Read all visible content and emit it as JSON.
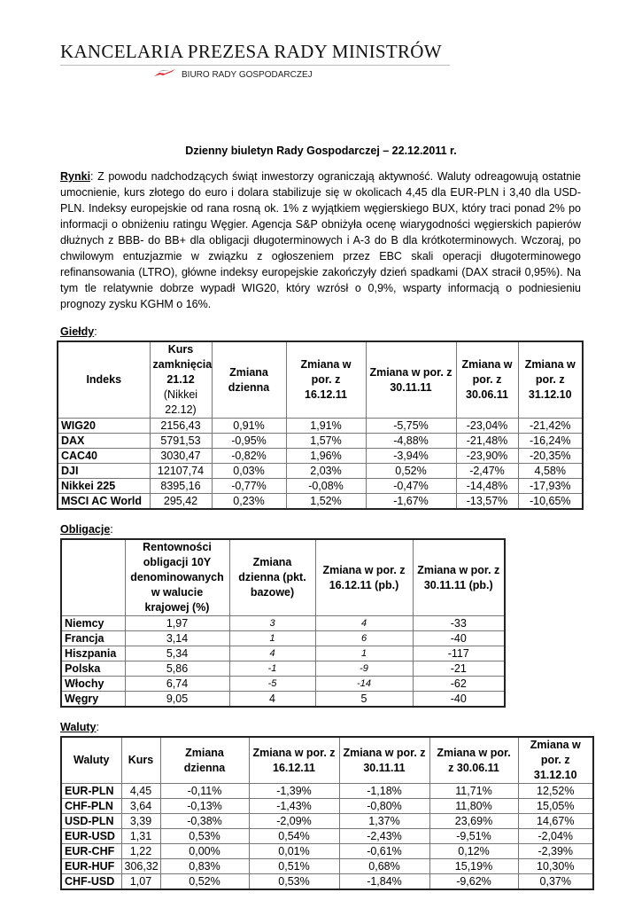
{
  "header": {
    "logo_title": "KANCELARIA PREZESA RADY MINISTRÓW",
    "logo_subtitle": "BIURO RADY GOSPODARCZEJ",
    "flag_color": "#d9282f"
  },
  "document": {
    "title": "Dzienny biuletyn Rady Gospodarczej – 22.12.2011 r.",
    "markets_label": "Rynki",
    "markets_text": ": Z powodu nadchodzących świąt inwestorzy ograniczają aktywność. Waluty odreagowują ostatnie umocnienie, kurs złotego do euro i dolara stabilizuje się w okolicach 4,45 dla EUR-PLN i 3,40 dla USD-PLN. Indeksy europejskie od rana rosną ok. 1% z wyjątkiem węgierskiego BUX, który traci ponad 2% po informacji o obniżeniu ratingu Węgier. Agencja S&P obniżyła ocenę wiarygodności węgierskich papierów dłużnych z BBB- do BB+ dla obligacji długoterminowych i A-3 do B dla krótkoterminowych. Wczoraj, po chwilowym entuzjazmie w związku z ogłoszeniem przez EBC skali operacji długoterminowego refinansowania (LTRO), główne indeksy europejskie zakończyły dzień spadkami (DAX stracił 0,95%). Na tym tle relatywnie dobrze wypadł WIG20, który wzrósł o 0,9%, wsparty informacją o podniesieniu prognozy zysku KGHM o 16%."
  },
  "stocks": {
    "label": "Giełdy",
    "headers": [
      "Indeks",
      "Kurs zamknięcia 21.12 (Nikkei 22.12)",
      "Zmiana dzienna",
      "Zmiana w por. z 16.12.11",
      "Zmiana w por. z 30.11.11",
      "Zmiana w por. z 30.06.11",
      "Zmiana w por. z 31.12.10"
    ],
    "rows": [
      [
        "WIG20",
        "2156,43",
        "0,91%",
        "1,91%",
        "-5,75%",
        "-23,04%",
        "-21,42%"
      ],
      [
        "DAX",
        "5791,53",
        "-0,95%",
        "1,57%",
        "-4,88%",
        "-21,48%",
        "-16,24%"
      ],
      [
        "CAC40",
        "3030,47",
        "-0,82%",
        "1,96%",
        "-3,94%",
        "-23,90%",
        "-20,35%"
      ],
      [
        "DJI",
        "12107,74",
        "0,03%",
        "2,03%",
        "0,52%",
        "-2,47%",
        "4,58%"
      ],
      [
        "Nikkei 225",
        "8395,16",
        "-0,77%",
        "-0,08%",
        "-0,47%",
        "-14,48%",
        "-17,93%"
      ],
      [
        "MSCI AC World",
        "295,42",
        "0,23%",
        "1,52%",
        "-1,67%",
        "-13,57%",
        "-10,65%"
      ]
    ]
  },
  "bonds": {
    "label": "Obligacje",
    "headers": [
      "",
      "Rentowności obligacji 10Y denominowanych w walucie krajowej (%)",
      "Zmiana dzienna (pkt. bazowe)",
      "Zmiana w por. z 16.12.11 (pb.)",
      "Zmiana w por. z 30.11.11 (pb.)"
    ],
    "rows": [
      [
        "Niemcy",
        "1,97",
        "3",
        "4",
        "-33"
      ],
      [
        "Francja",
        "3,14",
        "1",
        "6",
        "-40"
      ],
      [
        "Hiszpania",
        "5,34",
        "4",
        "1",
        "-117"
      ],
      [
        "Polska",
        "5,86",
        "-1",
        "-9",
        "-21"
      ],
      [
        "Włochy",
        "6,74",
        "-5",
        "-14",
        "-62"
      ],
      [
        "Węgry",
        "9,05",
        "4",
        "5",
        "-40"
      ]
    ]
  },
  "currencies": {
    "label": "Waluty",
    "headers": [
      "Waluty",
      "Kurs",
      "Zmiana dzienna",
      "Zmiana w por. z 16.12.11",
      "Zmiana w por. z 30.11.11",
      "Zmiana w por. z 30.06.11",
      "Zmiana w por. z 31.12.10"
    ],
    "rows": [
      [
        "EUR-PLN",
        "4,45",
        "-0,11%",
        "-1,39%",
        "-1,18%",
        "11,71%",
        "12,52%"
      ],
      [
        "CHF-PLN",
        "3,64",
        "-0,13%",
        "-1,43%",
        "-0,80%",
        "11,80%",
        "15,05%"
      ],
      [
        "USD-PLN",
        "3,39",
        "-0,38%",
        "-2,09%",
        "1,37%",
        "23,69%",
        "14,67%"
      ],
      [
        "EUR-USD",
        "1,31",
        "0,53%",
        "0,54%",
        "-2,43%",
        "-9,51%",
        "-2,04%"
      ],
      [
        "EUR-CHF",
        "1,22",
        "0,00%",
        "0,01%",
        "-0,61%",
        "0,12%",
        "-2,39%"
      ],
      [
        "EUR-HUF",
        "306,32",
        "0,83%",
        "0,51%",
        "0,68%",
        "15,19%",
        "10,30%"
      ],
      [
        "CHF-USD",
        "1,07",
        "0,52%",
        "0,53%",
        "-1,84%",
        "-9,62%",
        "0,37%"
      ]
    ]
  }
}
